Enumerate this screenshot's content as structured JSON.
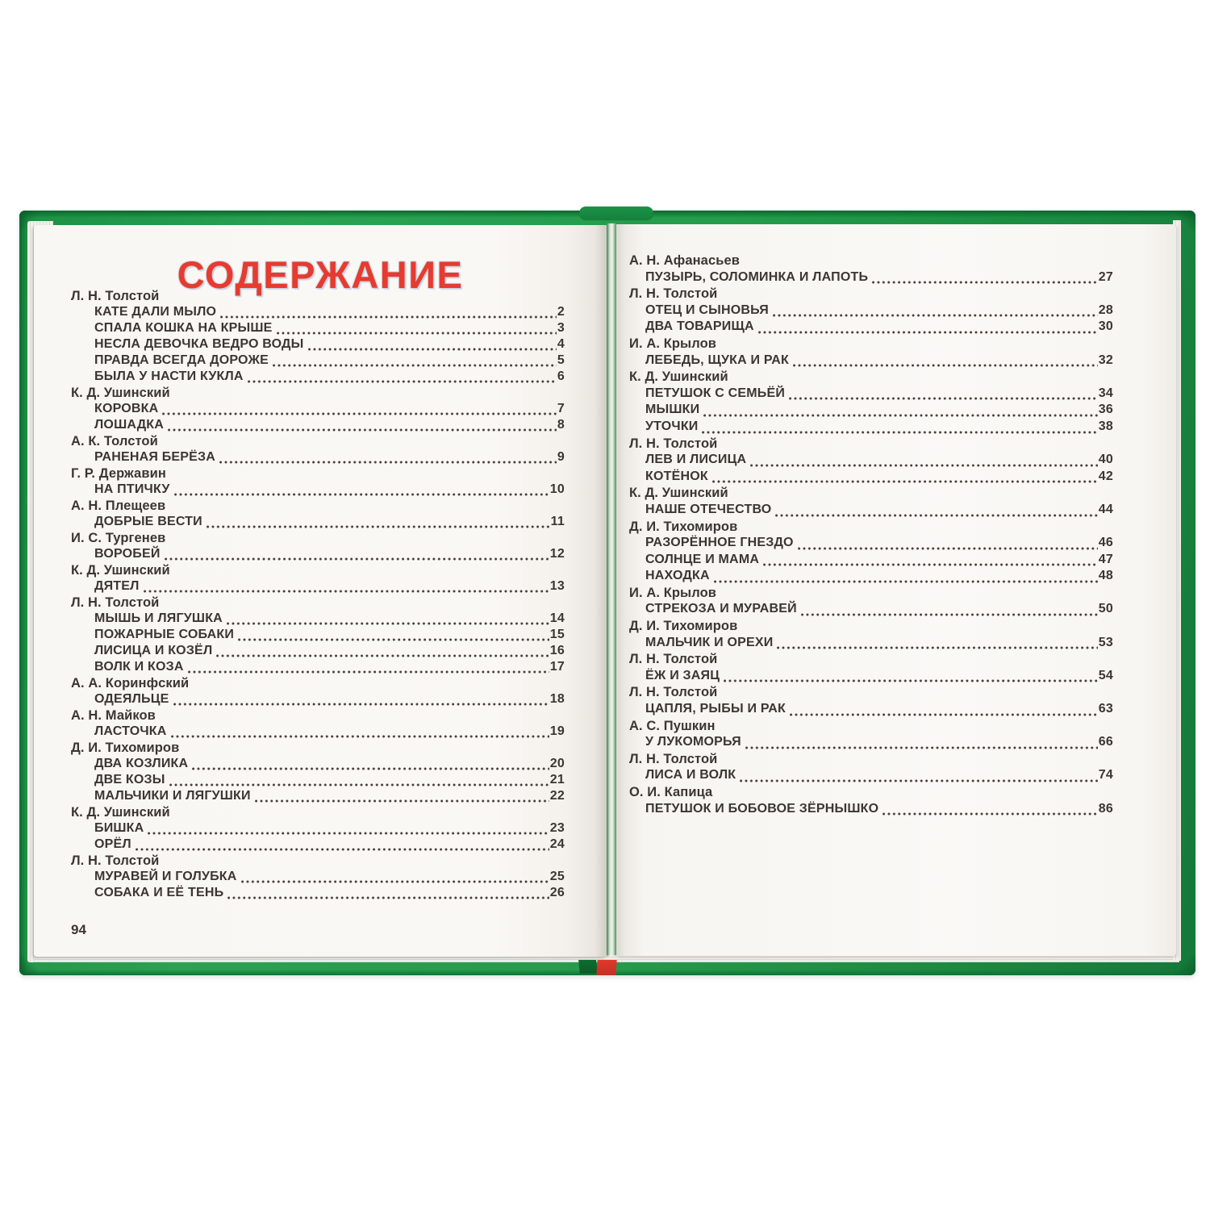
{
  "book": {
    "cover_color": "#239c4b",
    "cover_dark_color": "#0e6e31",
    "spine_accent_color": "#d6362b",
    "paper_color": "#f9f7f4",
    "text_color": "#3b3632",
    "title_color": "#e63b2f"
  },
  "left_page": {
    "title": "СОДЕРЖАНИЕ",
    "page_number": "94",
    "entries": [
      {
        "type": "author",
        "text": "Л. Н. Толстой"
      },
      {
        "type": "item",
        "text": "КАТЕ ДАЛИ МЫЛО",
        "page": "2"
      },
      {
        "type": "item",
        "text": "СПАЛА КОШКА НА КРЫШЕ",
        "page": "3"
      },
      {
        "type": "item",
        "text": "НЕСЛА ДЕВОЧКА ВЕДРО ВОДЫ",
        "page": "4"
      },
      {
        "type": "item",
        "text": "ПРАВДА ВСЕГДА ДОРОЖЕ",
        "page": "5"
      },
      {
        "type": "item",
        "text": "БЫЛА У НАСТИ КУКЛА",
        "page": "6"
      },
      {
        "type": "author",
        "text": "К. Д. Ушинский"
      },
      {
        "type": "item",
        "text": "КОРОВКА",
        "page": "7"
      },
      {
        "type": "item",
        "text": "ЛОШАДКА",
        "page": "8"
      },
      {
        "type": "author",
        "text": "А. К. Толстой"
      },
      {
        "type": "item",
        "text": "РАНЕНАЯ БЕРЁЗА",
        "page": "9"
      },
      {
        "type": "author",
        "text": "Г. Р. Державин"
      },
      {
        "type": "item",
        "text": "НА ПТИЧКУ",
        "page": "10"
      },
      {
        "type": "author",
        "text": "А. Н. Плещеев"
      },
      {
        "type": "item",
        "text": "ДОБРЫЕ ВЕСТИ",
        "page": "11"
      },
      {
        "type": "author",
        "text": "И. С. Тургенев"
      },
      {
        "type": "item",
        "text": "ВОРОБЕЙ",
        "page": "12"
      },
      {
        "type": "author",
        "text": "К. Д. Ушинский"
      },
      {
        "type": "item",
        "text": "ДЯТЕЛ",
        "page": "13"
      },
      {
        "type": "author",
        "text": "Л. Н. Толстой"
      },
      {
        "type": "item",
        "text": "МЫШЬ И ЛЯГУШКА",
        "page": "14"
      },
      {
        "type": "item",
        "text": "ПОЖАРНЫЕ СОБАКИ",
        "page": "15"
      },
      {
        "type": "item",
        "text": "ЛИСИЦА И КОЗЁЛ",
        "page": "16"
      },
      {
        "type": "item",
        "text": "ВОЛК И КОЗА",
        "page": "17"
      },
      {
        "type": "author",
        "text": "А. А. Коринфский"
      },
      {
        "type": "item",
        "text": "ОДЕЯЛЬЦЕ",
        "page": "18"
      },
      {
        "type": "author",
        "text": "А. Н. Майков"
      },
      {
        "type": "item",
        "text": "ЛАСТОЧКА",
        "page": "19"
      },
      {
        "type": "author",
        "text": "Д. И. Тихомиров"
      },
      {
        "type": "item",
        "text": "ДВА КОЗЛИКА",
        "page": "20"
      },
      {
        "type": "item",
        "text": "ДВЕ КОЗЫ",
        "page": "21"
      },
      {
        "type": "item",
        "text": "МАЛЬЧИКИ И ЛЯГУШКИ",
        "page": "22"
      },
      {
        "type": "author",
        "text": "К. Д. Ушинский"
      },
      {
        "type": "item",
        "text": "БИШКА",
        "page": "23"
      },
      {
        "type": "item",
        "text": "ОРЁЛ",
        "page": "24"
      },
      {
        "type": "author",
        "text": "Л. Н. Толстой"
      },
      {
        "type": "item",
        "text": "МУРАВЕЙ И ГОЛУБКА",
        "page": "25"
      },
      {
        "type": "item",
        "text": "СОБАКА И ЕЁ ТЕНЬ",
        "page": "26"
      }
    ]
  },
  "right_page": {
    "entries": [
      {
        "type": "author",
        "text": "А. Н. Афанасьев"
      },
      {
        "type": "item",
        "text": "ПУЗЫРЬ, СОЛОМИНКА И ЛАПОТЬ",
        "page": "27"
      },
      {
        "type": "author",
        "text": "Л. Н. Толстой"
      },
      {
        "type": "item",
        "text": "ОТЕЦ И СЫНОВЬЯ",
        "page": "28"
      },
      {
        "type": "item",
        "text": "ДВА ТОВАРИЩА",
        "page": "30"
      },
      {
        "type": "author",
        "text": "И. А. Крылов"
      },
      {
        "type": "item",
        "text": "ЛЕБЕДЬ, ЩУКА И РАК",
        "page": "32"
      },
      {
        "type": "author",
        "text": "К. Д. Ушинский"
      },
      {
        "type": "item",
        "text": "ПЕТУШОК С СЕМЬЁЙ",
        "page": "34"
      },
      {
        "type": "item",
        "text": "МЫШКИ",
        "page": "36"
      },
      {
        "type": "item",
        "text": "УТОЧКИ",
        "page": "38"
      },
      {
        "type": "author",
        "text": "Л. Н. Толстой"
      },
      {
        "type": "item",
        "text": "ЛЕВ И ЛИСИЦА",
        "page": "40"
      },
      {
        "type": "item",
        "text": "КОТЁНОК",
        "page": "42"
      },
      {
        "type": "author",
        "text": "К. Д. Ушинский"
      },
      {
        "type": "item",
        "text": "НАШЕ ОТЕЧЕСТВО",
        "page": "44"
      },
      {
        "type": "author",
        "text": "Д. И. Тихомиров"
      },
      {
        "type": "item",
        "text": "РАЗОРЁННОЕ ГНЕЗДО",
        "page": "46"
      },
      {
        "type": "item",
        "text": "СОЛНЦЕ И МАМА",
        "page": "47"
      },
      {
        "type": "item",
        "text": "НАХОДКА",
        "page": "48"
      },
      {
        "type": "author",
        "text": "И. А. Крылов"
      },
      {
        "type": "item",
        "text": "СТРЕКОЗА И МУРАВЕЙ",
        "page": "50"
      },
      {
        "type": "author",
        "text": "Д. И. Тихомиров"
      },
      {
        "type": "item",
        "text": "МАЛЬЧИК И ОРЕХИ",
        "page": "53"
      },
      {
        "type": "author",
        "text": "Л. Н. Толстой"
      },
      {
        "type": "item",
        "text": "ЁЖ И ЗАЯЦ",
        "page": "54"
      },
      {
        "type": "author",
        "text": "Л. Н. Толстой"
      },
      {
        "type": "item",
        "text": "ЦАПЛЯ, РЫБЫ И РАК",
        "page": "63"
      },
      {
        "type": "author",
        "text": "А. С. Пушкин"
      },
      {
        "type": "item",
        "text": "У ЛУКОМОРЬЯ",
        "page": "66"
      },
      {
        "type": "author",
        "text": "Л. Н. Толстой"
      },
      {
        "type": "item",
        "text": "ЛИСА И ВОЛК",
        "page": "74"
      },
      {
        "type": "author",
        "text": "О. И. Капица"
      },
      {
        "type": "item",
        "text": "ПЕТУШОК И БОБОВОЕ ЗЁРНЫШКО",
        "page": "86"
      }
    ]
  }
}
